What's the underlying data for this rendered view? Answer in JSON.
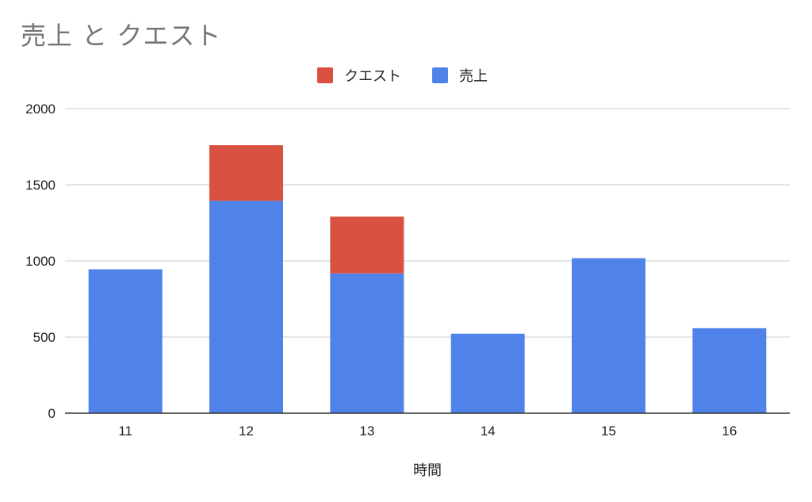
{
  "chart_data": {
    "type": "bar",
    "stacked": true,
    "title": "売上 と クエスト",
    "xlabel": "時間",
    "ylabel": "",
    "ylim": [
      0,
      2000
    ],
    "yticks": [
      0,
      500,
      1000,
      1500,
      2000
    ],
    "categories": [
      "11",
      "12",
      "13",
      "14",
      "15",
      "16"
    ],
    "series": [
      {
        "name": "売上",
        "color": "#5083ea",
        "values": [
          945,
          1395,
          918,
          522,
          1018,
          558
        ]
      },
      {
        "name": "クエスト",
        "color": "#d95140",
        "values": [
          0,
          365,
          373,
          0,
          0,
          0
        ]
      }
    ],
    "legend": {
      "position": "top",
      "order": [
        "クエスト",
        "売上"
      ]
    },
    "grid": true
  }
}
